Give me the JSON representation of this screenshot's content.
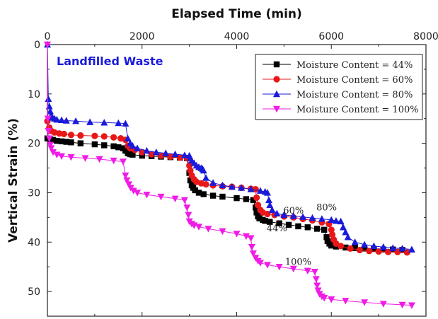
{
  "chart_data": {
    "type": "line",
    "xlabel": "Elapsed Time (min)",
    "ylabel": "Vertical Strain (%)",
    "xlim": [
      0,
      8000
    ],
    "ylim": [
      0,
      55
    ],
    "y_inverted": true,
    "x_axis_position": "top",
    "x_ticks": [
      0,
      2000,
      4000,
      6000,
      8000
    ],
    "y_ticks": [
      0,
      10,
      20,
      30,
      40,
      50
    ],
    "x_tick_labels": [
      "0",
      "2000",
      "4000",
      "6000",
      "8000"
    ],
    "y_tick_labels": [
      "0",
      "10",
      "20",
      "30",
      "40",
      "50"
    ],
    "grid": false,
    "legend_position": "top-right",
    "panel_label": "Landfilled Waste",
    "panel_label_color": "#1a1adb",
    "annotations": [
      {
        "text": "60%",
        "x": 5200,
        "y": 34.2
      },
      {
        "text": "80%",
        "x": 5900,
        "y": 33.6
      },
      {
        "text": "44%",
        "x": 4850,
        "y": 37.8
      },
      {
        "text": "100%",
        "x": 5300,
        "y": 44.6
      }
    ],
    "series": [
      {
        "name": "Moisture Content = 44%",
        "color": "#000000",
        "marker": "square",
        "x": [
          0,
          60,
          120,
          200,
          300,
          400,
          500,
          700,
          1000,
          1200,
          1400,
          1500,
          1600,
          1650,
          1700,
          1750,
          1800,
          2000,
          2200,
          2400,
          2600,
          2800,
          2950,
          3000,
          3020,
          3050,
          3080,
          3120,
          3200,
          3300,
          3500,
          3700,
          4000,
          4200,
          4350,
          4400,
          4420,
          4450,
          4480,
          4550,
          4600,
          4700,
          4900,
          5100,
          5300,
          5500,
          5700,
          5850,
          5900,
          5920,
          5960,
          6000,
          6100,
          6300,
          6500,
          6700,
          6900,
          7100,
          7300,
          7500
        ],
        "y": [
          19.0,
          19.2,
          19.3,
          19.5,
          19.6,
          19.7,
          19.8,
          20.0,
          20.2,
          20.4,
          20.6,
          20.8,
          21.0,
          21.5,
          22.0,
          22.2,
          22.3,
          22.5,
          22.6,
          22.7,
          22.8,
          22.9,
          23.0,
          26.0,
          27.5,
          28.5,
          29.0,
          29.5,
          30.0,
          30.3,
          30.6,
          30.8,
          31.1,
          31.3,
          31.5,
          33.0,
          34.0,
          34.8,
          35.2,
          35.5,
          35.7,
          35.9,
          36.2,
          36.5,
          36.8,
          37.0,
          37.3,
          37.5,
          39.0,
          39.8,
          40.3,
          40.7,
          40.9,
          41.1,
          41.2,
          41.3,
          41.4,
          41.5,
          41.5,
          41.6
        ]
      },
      {
        "name": "Moisture Content = 60%",
        "color": "#e81818",
        "marker": "circle",
        "x": [
          0,
          40,
          80,
          150,
          250,
          350,
          500,
          700,
          1000,
          1200,
          1400,
          1550,
          1650,
          1700,
          1750,
          1850,
          2000,
          2200,
          2400,
          2600,
          2800,
          2950,
          3000,
          3020,
          3050,
          3100,
          3150,
          3250,
          3350,
          3500,
          3700,
          3900,
          4100,
          4300,
          4400,
          4420,
          4450,
          4500,
          4550,
          4650,
          4800,
          5000,
          5200,
          5400,
          5600,
          5800,
          5950,
          6000,
          6020,
          6050,
          6100,
          6200,
          6400,
          6600,
          6800,
          7000,
          7200,
          7400,
          7600
        ],
        "y": [
          15.5,
          16.8,
          17.5,
          17.8,
          18.0,
          18.1,
          18.3,
          18.4,
          18.5,
          18.6,
          18.8,
          19.0,
          19.3,
          20.5,
          21.0,
          21.3,
          21.8,
          22.2,
          22.5,
          22.7,
          22.9,
          23.0,
          24.5,
          25.5,
          26.5,
          27.3,
          27.8,
          28.1,
          28.3,
          28.5,
          28.7,
          28.8,
          29.0,
          29.2,
          29.3,
          31.0,
          32.5,
          33.5,
          34.0,
          34.3,
          34.5,
          34.8,
          35.0,
          35.3,
          35.6,
          36.0,
          36.3,
          37.5,
          38.5,
          39.5,
          40.3,
          40.8,
          41.3,
          41.6,
          41.8,
          41.9,
          42.0,
          42.0,
          42.1
        ]
      },
      {
        "name": "Moisture Content = 80%",
        "color": "#1a1adb",
        "marker": "triangle-up",
        "x": [
          0,
          20,
          40,
          60,
          80,
          100,
          150,
          200,
          300,
          400,
          600,
          900,
          1200,
          1500,
          1650,
          1700,
          1750,
          1800,
          1900,
          2100,
          2300,
          2500,
          2700,
          2900,
          3000,
          3020,
          3050,
          3100,
          3150,
          3200,
          3250,
          3280,
          3300,
          3350,
          3500,
          3700,
          3900,
          4100,
          4300,
          4500,
          4600,
          4650,
          4680,
          4700,
          4750,
          4850,
          5000,
          5200,
          5400,
          5600,
          5800,
          6000,
          6100,
          6200,
          6250,
          6300,
          6350,
          6500,
          6700,
          6900,
          7100,
          7300,
          7500,
          7700
        ],
        "y": [
          0,
          11.0,
          12.5,
          13.5,
          14.3,
          14.8,
          15.0,
          15.2,
          15.3,
          15.4,
          15.5,
          15.7,
          15.8,
          15.9,
          16.0,
          19.0,
          20.0,
          20.5,
          21.0,
          21.5,
          21.8,
          22.0,
          22.2,
          22.4,
          22.5,
          23.0,
          23.5,
          24.0,
          24.5,
          24.8,
          25.0,
          25.2,
          25.5,
          27.0,
          28.0,
          28.5,
          28.8,
          29.0,
          29.3,
          29.6,
          29.8,
          30.0,
          31.5,
          32.5,
          33.5,
          34.2,
          34.5,
          34.7,
          34.9,
          35.1,
          35.3,
          35.5,
          35.7,
          35.8,
          37.0,
          38.0,
          39.0,
          40.0,
          40.5,
          40.8,
          41.0,
          41.2,
          41.3,
          41.5
        ]
      },
      {
        "name": "Moisture Content = 100%",
        "color": "#f01ce6",
        "marker": "triangle-down",
        "x": [
          0,
          10,
          20,
          40,
          60,
          80,
          120,
          200,
          300,
          500,
          800,
          1100,
          1400,
          1600,
          1650,
          1680,
          1720,
          1760,
          1820,
          1900,
          2100,
          2400,
          2700,
          2900,
          2950,
          2980,
          3000,
          3050,
          3100,
          3200,
          3400,
          3700,
          4000,
          4200,
          4300,
          4320,
          4350,
          4400,
          4450,
          4500,
          4650,
          4900,
          5200,
          5500,
          5650,
          5680,
          5700,
          5720,
          5750,
          5800,
          5850,
          6000,
          6300,
          6700,
          7100,
          7500,
          7700
        ],
        "y": [
          0,
          15.0,
          17.5,
          19.0,
          20.3,
          21.0,
          21.8,
          22.3,
          22.6,
          22.8,
          23.0,
          23.2,
          23.5,
          23.7,
          26.5,
          27.5,
          28.3,
          29.0,
          29.6,
          30.0,
          30.4,
          30.8,
          31.2,
          31.5,
          33.0,
          34.5,
          35.8,
          36.3,
          36.6,
          36.9,
          37.3,
          37.8,
          38.3,
          38.8,
          39.2,
          41.0,
          42.3,
          43.2,
          43.8,
          44.2,
          44.6,
          45.0,
          45.4,
          45.8,
          46.0,
          47.5,
          48.8,
          49.8,
          50.5,
          51.0,
          51.3,
          51.6,
          51.9,
          52.2,
          52.5,
          52.7,
          52.8
        ]
      }
    ]
  }
}
